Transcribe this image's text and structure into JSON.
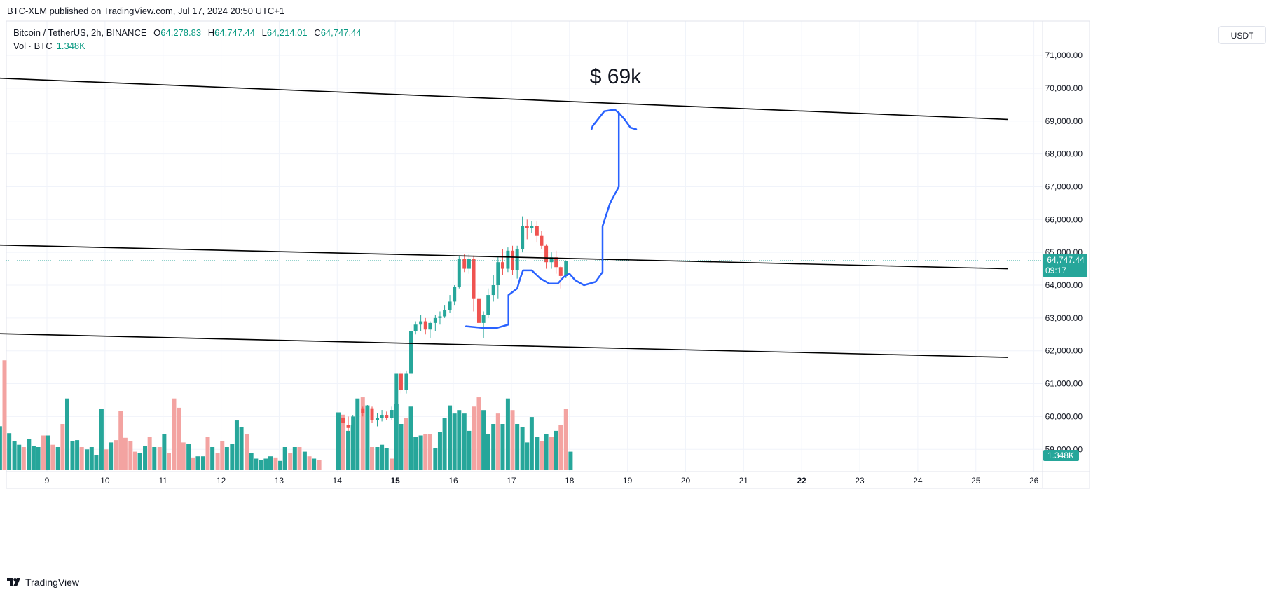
{
  "header": {
    "published": "BTC-XLM published on TradingView.com, Jul 17, 2024 20:50 UTC+1",
    "symbol": "Bitcoin / TetherUS, 2h, BINANCE",
    "o_label": "O",
    "o_value": "64,278.83",
    "h_label": "H",
    "h_value": "64,747.44",
    "l_label": "L",
    "l_value": "64,214.01",
    "c_label": "C",
    "c_value": "64,747.44",
    "vol_label": "Vol · BTC",
    "vol_value": "1.348K"
  },
  "currency_button": "USDT",
  "footer": {
    "brand": "TradingView",
    "logo_icon": "tradingview-logo-icon"
  },
  "colors": {
    "up": "#26a69a",
    "down": "#ef5350",
    "vol_up": "#26a69a",
    "vol_down": "#f3a3a1",
    "drawing": "#2962ff",
    "trendline": "#000000"
  },
  "annotation": {
    "text": "$ 69k"
  },
  "chart_data": {
    "type": "candlestick",
    "x_ticks": [
      {
        "label": "9",
        "day": 9
      },
      {
        "label": "10",
        "day": 10
      },
      {
        "label": "11",
        "day": 11
      },
      {
        "label": "12",
        "day": 12
      },
      {
        "label": "13",
        "day": 13
      },
      {
        "label": "14",
        "day": 14
      },
      {
        "label": "15",
        "day": 15,
        "bold": true
      },
      {
        "label": "16",
        "day": 16
      },
      {
        "label": "17",
        "day": 17
      },
      {
        "label": "18",
        "day": 18
      },
      {
        "label": "19",
        "day": 19
      },
      {
        "label": "20",
        "day": 20
      },
      {
        "label": "21",
        "day": 21
      },
      {
        "label": "22",
        "day": 22,
        "bold": true
      },
      {
        "label": "23",
        "day": 23
      },
      {
        "label": "24",
        "day": 24
      },
      {
        "label": "25",
        "day": 25
      },
      {
        "label": "26",
        "day": 26
      }
    ],
    "y_ticks": [
      59000,
      60000,
      61000,
      62000,
      63000,
      64000,
      65000,
      66000,
      67000,
      68000,
      69000,
      70000,
      71000
    ],
    "y_tick_labels": [
      "59,000.00",
      "60,000.00",
      "61,000.00",
      "62,000.00",
      "63,000.00",
      "64,000.00",
      "65,000.00",
      "66,000.00",
      "67,000.00",
      "68,000.00",
      "69,000.00",
      "70,000.00",
      "71,000.00"
    ],
    "ylim": [
      58500,
      71500
    ],
    "last_price": {
      "value": 64747.44,
      "label": "64,747.44",
      "countdown": "09:17"
    },
    "last_volume": {
      "label": "1.348K"
    },
    "candles": [
      {
        "t": 14.02,
        "o": 59700,
        "h": 59950,
        "l": 59550,
        "c": 59950
      },
      {
        "t": 14.1,
        "o": 59950,
        "h": 60050,
        "l": 59700,
        "c": 59800
      },
      {
        "t": 14.19,
        "o": 59750,
        "h": 60000,
        "l": 59550,
        "c": 59650
      },
      {
        "t": 14.27,
        "o": 59650,
        "h": 60050,
        "l": 59600,
        "c": 60000
      },
      {
        "t": 14.35,
        "o": 60000,
        "h": 60400,
        "l": 59950,
        "c": 60250
      },
      {
        "t": 14.44,
        "o": 60250,
        "h": 60300,
        "l": 60000,
        "c": 60100
      },
      {
        "t": 14.52,
        "o": 60100,
        "h": 60350,
        "l": 60000,
        "c": 60250
      },
      {
        "t": 14.6,
        "o": 60250,
        "h": 60300,
        "l": 59800,
        "c": 59900
      },
      {
        "t": 14.69,
        "o": 59900,
        "h": 60100,
        "l": 59700,
        "c": 59950
      },
      {
        "t": 14.77,
        "o": 59950,
        "h": 60200,
        "l": 59850,
        "c": 60050
      },
      {
        "t": 14.85,
        "o": 60050,
        "h": 60150,
        "l": 59900,
        "c": 59950
      },
      {
        "t": 14.94,
        "o": 59950,
        "h": 60300,
        "l": 59900,
        "c": 60200
      },
      {
        "t": 15.02,
        "o": 60200,
        "h": 61300,
        "l": 60100,
        "c": 61300
      },
      {
        "t": 15.1,
        "o": 61300,
        "h": 61400,
        "l": 60700,
        "c": 60800
      },
      {
        "t": 15.19,
        "o": 60800,
        "h": 61400,
        "l": 60700,
        "c": 61300
      },
      {
        "t": 15.27,
        "o": 61300,
        "h": 62800,
        "l": 61200,
        "c": 62600
      },
      {
        "t": 15.35,
        "o": 62600,
        "h": 62900,
        "l": 62500,
        "c": 62800
      },
      {
        "t": 15.44,
        "o": 62800,
        "h": 63100,
        "l": 62600,
        "c": 62900
      },
      {
        "t": 15.52,
        "o": 62900,
        "h": 63000,
        "l": 62500,
        "c": 62650
      },
      {
        "t": 15.6,
        "o": 62650,
        "h": 62900,
        "l": 62400,
        "c": 62850
      },
      {
        "t": 15.69,
        "o": 62850,
        "h": 63100,
        "l": 62600,
        "c": 63000
      },
      {
        "t": 15.77,
        "o": 63000,
        "h": 63200,
        "l": 62800,
        "c": 63050
      },
      {
        "t": 15.85,
        "o": 63050,
        "h": 63400,
        "l": 63000,
        "c": 63250
      },
      {
        "t": 15.94,
        "o": 63250,
        "h": 63700,
        "l": 63150,
        "c": 63500
      },
      {
        "t": 16.02,
        "o": 63500,
        "h": 64000,
        "l": 63400,
        "c": 63950
      },
      {
        "t": 16.1,
        "o": 63950,
        "h": 64900,
        "l": 63900,
        "c": 64800
      },
      {
        "t": 16.19,
        "o": 64800,
        "h": 64950,
        "l": 64400,
        "c": 64500
      },
      {
        "t": 16.27,
        "o": 64500,
        "h": 64950,
        "l": 64350,
        "c": 64800
      },
      {
        "t": 16.35,
        "o": 64800,
        "h": 64900,
        "l": 63200,
        "c": 63600
      },
      {
        "t": 16.44,
        "o": 63600,
        "h": 63800,
        "l": 62700,
        "c": 62850
      },
      {
        "t": 16.52,
        "o": 62850,
        "h": 63200,
        "l": 62400,
        "c": 63100
      },
      {
        "t": 16.6,
        "o": 63100,
        "h": 63900,
        "l": 63000,
        "c": 63700
      },
      {
        "t": 16.69,
        "o": 63700,
        "h": 64300,
        "l": 63500,
        "c": 64000
      },
      {
        "t": 16.77,
        "o": 64000,
        "h": 64850,
        "l": 63600,
        "c": 64700
      },
      {
        "t": 16.85,
        "o": 64700,
        "h": 65100,
        "l": 64300,
        "c": 64500
      },
      {
        "t": 16.94,
        "o": 64500,
        "h": 65150,
        "l": 64400,
        "c": 65050
      },
      {
        "t": 17.02,
        "o": 65050,
        "h": 65200,
        "l": 64300,
        "c": 64450
      },
      {
        "t": 17.1,
        "o": 64450,
        "h": 65200,
        "l": 64200,
        "c": 65100
      },
      {
        "t": 17.19,
        "o": 65100,
        "h": 66100,
        "l": 65000,
        "c": 65800
      },
      {
        "t": 17.27,
        "o": 65800,
        "h": 66000,
        "l": 65400,
        "c": 65750
      },
      {
        "t": 17.35,
        "o": 65750,
        "h": 65950,
        "l": 65600,
        "c": 65800
      },
      {
        "t": 17.44,
        "o": 65800,
        "h": 65950,
        "l": 65300,
        "c": 65500
      },
      {
        "t": 17.52,
        "o": 65500,
        "h": 65650,
        "l": 65100,
        "c": 65200
      },
      {
        "t": 17.6,
        "o": 65200,
        "h": 65250,
        "l": 64500,
        "c": 64700
      },
      {
        "t": 17.69,
        "o": 64700,
        "h": 65000,
        "l": 64500,
        "c": 64850
      },
      {
        "t": 17.77,
        "o": 64850,
        "h": 65050,
        "l": 64350,
        "c": 64550
      },
      {
        "t": 17.85,
        "o": 64550,
        "h": 64600,
        "l": 63900,
        "c": 64280
      },
      {
        "t": 17.94,
        "o": 64280,
        "h": 64750,
        "l": 64214,
        "c": 64747
      }
    ],
    "volume": [
      {
        "t": 8.02,
        "v": 0.95,
        "up": true
      },
      {
        "t": 8.1,
        "v": 0.35,
        "up": false
      },
      {
        "t": 8.19,
        "v": 0.38,
        "up": true
      },
      {
        "t": 8.27,
        "v": 0.95,
        "up": false
      },
      {
        "t": 8.35,
        "v": 0.32,
        "up": true
      },
      {
        "t": 8.44,
        "v": 0.25,
        "up": true
      },
      {
        "t": 8.52,
        "v": 0.22,
        "up": true
      },
      {
        "t": 8.6,
        "v": 0.2,
        "up": false
      },
      {
        "t": 8.69,
        "v": 0.27,
        "up": true
      },
      {
        "t": 8.77,
        "v": 0.21,
        "up": true
      },
      {
        "t": 8.85,
        "v": 0.2,
        "up": true
      },
      {
        "t": 8.94,
        "v": 0.3,
        "up": false
      },
      {
        "t": 9.02,
        "v": 0.3,
        "up": true
      },
      {
        "t": 9.1,
        "v": 0.22,
        "up": false
      },
      {
        "t": 9.19,
        "v": 0.2,
        "up": true
      },
      {
        "t": 9.27,
        "v": 0.4,
        "up": false
      },
      {
        "t": 9.35,
        "v": 0.62,
        "up": true
      },
      {
        "t": 9.44,
        "v": 0.25,
        "up": true
      },
      {
        "t": 9.52,
        "v": 0.26,
        "up": true
      },
      {
        "t": 9.6,
        "v": 0.2,
        "up": false
      },
      {
        "t": 9.69,
        "v": 0.18,
        "up": true
      },
      {
        "t": 9.77,
        "v": 0.2,
        "up": true
      },
      {
        "t": 9.85,
        "v": 0.13,
        "up": true
      },
      {
        "t": 9.94,
        "v": 0.53,
        "up": true
      },
      {
        "t": 10.02,
        "v": 0.18,
        "up": false
      },
      {
        "t": 10.1,
        "v": 0.24,
        "up": true
      },
      {
        "t": 10.19,
        "v": 0.26,
        "up": false
      },
      {
        "t": 10.27,
        "v": 0.51,
        "up": false
      },
      {
        "t": 10.35,
        "v": 0.28,
        "up": false
      },
      {
        "t": 10.44,
        "v": 0.25,
        "up": false
      },
      {
        "t": 10.52,
        "v": 0.16,
        "up": false
      },
      {
        "t": 10.6,
        "v": 0.15,
        "up": true
      },
      {
        "t": 10.69,
        "v": 0.21,
        "up": true
      },
      {
        "t": 10.77,
        "v": 0.29,
        "up": false
      },
      {
        "t": 10.85,
        "v": 0.2,
        "up": true
      },
      {
        "t": 10.94,
        "v": 0.2,
        "up": false
      },
      {
        "t": 11.02,
        "v": 0.31,
        "up": true
      },
      {
        "t": 11.1,
        "v": 0.15,
        "up": false
      },
      {
        "t": 11.19,
        "v": 0.62,
        "up": false
      },
      {
        "t": 11.27,
        "v": 0.54,
        "up": false
      },
      {
        "t": 11.35,
        "v": 0.24,
        "up": false
      },
      {
        "t": 11.44,
        "v": 0.23,
        "up": true
      },
      {
        "t": 11.52,
        "v": 0.11,
        "up": false
      },
      {
        "t": 11.6,
        "v": 0.12,
        "up": true
      },
      {
        "t": 11.69,
        "v": 0.12,
        "up": true
      },
      {
        "t": 11.77,
        "v": 0.29,
        "up": false
      },
      {
        "t": 11.85,
        "v": 0.2,
        "up": true
      },
      {
        "t": 11.94,
        "v": 0.15,
        "up": false
      },
      {
        "t": 12.02,
        "v": 0.25,
        "up": false
      },
      {
        "t": 12.1,
        "v": 0.2,
        "up": true
      },
      {
        "t": 12.19,
        "v": 0.23,
        "up": true
      },
      {
        "t": 12.27,
        "v": 0.43,
        "up": true
      },
      {
        "t": 12.35,
        "v": 0.37,
        "up": true
      },
      {
        "t": 12.44,
        "v": 0.31,
        "up": false
      },
      {
        "t": 12.52,
        "v": 0.15,
        "up": true
      },
      {
        "t": 12.6,
        "v": 0.1,
        "up": true
      },
      {
        "t": 12.69,
        "v": 0.09,
        "up": true
      },
      {
        "t": 12.77,
        "v": 0.1,
        "up": true
      },
      {
        "t": 12.85,
        "v": 0.12,
        "up": true
      },
      {
        "t": 12.94,
        "v": 0.11,
        "up": false
      },
      {
        "t": 13.02,
        "v": 0.08,
        "up": true
      },
      {
        "t": 13.1,
        "v": 0.2,
        "up": true
      },
      {
        "t": 13.19,
        "v": 0.15,
        "up": false
      },
      {
        "t": 13.27,
        "v": 0.2,
        "up": true
      },
      {
        "t": 13.35,
        "v": 0.2,
        "up": false
      },
      {
        "t": 13.44,
        "v": 0.16,
        "up": true
      },
      {
        "t": 13.52,
        "v": 0.12,
        "up": false
      },
      {
        "t": 13.6,
        "v": 0.1,
        "up": true
      },
      {
        "t": 13.69,
        "v": 0.09,
        "up": false
      },
      {
        "t": 14.02,
        "v": 0.5,
        "up": true
      },
      {
        "t": 14.1,
        "v": 0.48,
        "up": false
      },
      {
        "t": 14.19,
        "v": 0.34,
        "up": true
      },
      {
        "t": 14.27,
        "v": 0.39,
        "up": true
      },
      {
        "t": 14.35,
        "v": 0.62,
        "up": true
      },
      {
        "t": 14.44,
        "v": 0.63,
        "up": false
      },
      {
        "t": 14.52,
        "v": 0.56,
        "up": true
      },
      {
        "t": 14.6,
        "v": 0.2,
        "up": false
      },
      {
        "t": 14.69,
        "v": 0.2,
        "up": true
      },
      {
        "t": 14.77,
        "v": 0.22,
        "up": true
      },
      {
        "t": 14.85,
        "v": 0.19,
        "up": true
      },
      {
        "t": 14.94,
        "v": 0.1,
        "up": false
      },
      {
        "t": 15.02,
        "v": 0.57,
        "up": true
      },
      {
        "t": 15.1,
        "v": 0.4,
        "up": true
      },
      {
        "t": 15.19,
        "v": 0.45,
        "up": false
      },
      {
        "t": 15.27,
        "v": 0.55,
        "up": true
      },
      {
        "t": 15.35,
        "v": 0.29,
        "up": true
      },
      {
        "t": 15.44,
        "v": 0.3,
        "up": true
      },
      {
        "t": 15.52,
        "v": 0.31,
        "up": false
      },
      {
        "t": 15.6,
        "v": 0.31,
        "up": false
      },
      {
        "t": 15.69,
        "v": 0.19,
        "up": true
      },
      {
        "t": 15.77,
        "v": 0.33,
        "up": true
      },
      {
        "t": 15.85,
        "v": 0.45,
        "up": true
      },
      {
        "t": 15.94,
        "v": 0.56,
        "up": true
      },
      {
        "t": 16.02,
        "v": 0.49,
        "up": true
      },
      {
        "t": 16.1,
        "v": 0.52,
        "up": true
      },
      {
        "t": 16.19,
        "v": 0.49,
        "up": true
      },
      {
        "t": 16.27,
        "v": 0.34,
        "up": true
      },
      {
        "t": 16.35,
        "v": 0.55,
        "up": false
      },
      {
        "t": 16.44,
        "v": 0.63,
        "up": false
      },
      {
        "t": 16.52,
        "v": 0.52,
        "up": true
      },
      {
        "t": 16.6,
        "v": 0.31,
        "up": true
      },
      {
        "t": 16.69,
        "v": 0.4,
        "up": true
      },
      {
        "t": 16.77,
        "v": 0.49,
        "up": false
      },
      {
        "t": 16.85,
        "v": 0.4,
        "up": true
      },
      {
        "t": 16.94,
        "v": 0.62,
        "up": true
      },
      {
        "t": 17.02,
        "v": 0.52,
        "up": false
      },
      {
        "t": 17.1,
        "v": 0.4,
        "up": true
      },
      {
        "t": 17.19,
        "v": 0.37,
        "up": true
      },
      {
        "t": 17.27,
        "v": 0.24,
        "up": true
      },
      {
        "t": 17.35,
        "v": 0.46,
        "up": true
      },
      {
        "t": 17.44,
        "v": 0.29,
        "up": true
      },
      {
        "t": 17.52,
        "v": 0.25,
        "up": false
      },
      {
        "t": 17.6,
        "v": 0.31,
        "up": true
      },
      {
        "t": 17.69,
        "v": 0.29,
        "up": false
      },
      {
        "t": 17.77,
        "v": 0.34,
        "up": true
      },
      {
        "t": 17.85,
        "v": 0.39,
        "up": false
      },
      {
        "t": 17.94,
        "v": 0.53,
        "up": false
      },
      {
        "t": 18.02,
        "v": 0.16,
        "up": true
      }
    ],
    "trendlines": [
      {
        "t1": 7.55,
        "p1": 70350,
        "t2": 25.55,
        "p2": 69050
      },
      {
        "t1": 7.55,
        "p1": 65250,
        "t2": 25.55,
        "p2": 64500
      },
      {
        "t1": 7.55,
        "p1": 62550,
        "t2": 25.55,
        "p2": 61800
      }
    ],
    "projection_path": [
      {
        "t": 16.22,
        "p": 62750
      },
      {
        "t": 16.5,
        "p": 62700
      },
      {
        "t": 16.75,
        "p": 62700
      },
      {
        "t": 16.95,
        "p": 62800
      },
      {
        "t": 16.95,
        "p": 63700
      },
      {
        "t": 17.1,
        "p": 63900
      },
      {
        "t": 17.15,
        "p": 64200
      },
      {
        "t": 17.2,
        "p": 64450
      },
      {
        "t": 17.35,
        "p": 64450
      },
      {
        "t": 17.5,
        "p": 64200
      },
      {
        "t": 17.65,
        "p": 64050
      },
      {
        "t": 17.8,
        "p": 64050
      },
      {
        "t": 17.9,
        "p": 64250
      },
      {
        "t": 18.0,
        "p": 64350
      },
      {
        "t": 18.1,
        "p": 64150
      },
      {
        "t": 18.25,
        "p": 64000
      },
      {
        "t": 18.45,
        "p": 64100
      },
      {
        "t": 18.57,
        "p": 64400
      },
      {
        "t": 18.57,
        "p": 65800
      },
      {
        "t": 18.7,
        "p": 66500
      },
      {
        "t": 18.85,
        "p": 67000
      },
      {
        "t": 18.85,
        "p": 69250
      },
      {
        "t": 18.78,
        "p": 69350
      },
      {
        "t": 18.6,
        "p": 69300
      },
      {
        "t": 18.4,
        "p": 68850
      },
      {
        "t": 18.38,
        "p": 68750
      }
    ],
    "projection_tail": [
      {
        "t": 18.85,
        "p": 69250
      },
      {
        "t": 18.95,
        "p": 69050
      },
      {
        "t": 19.05,
        "p": 68800
      },
      {
        "t": 19.15,
        "p": 68750
      }
    ]
  }
}
